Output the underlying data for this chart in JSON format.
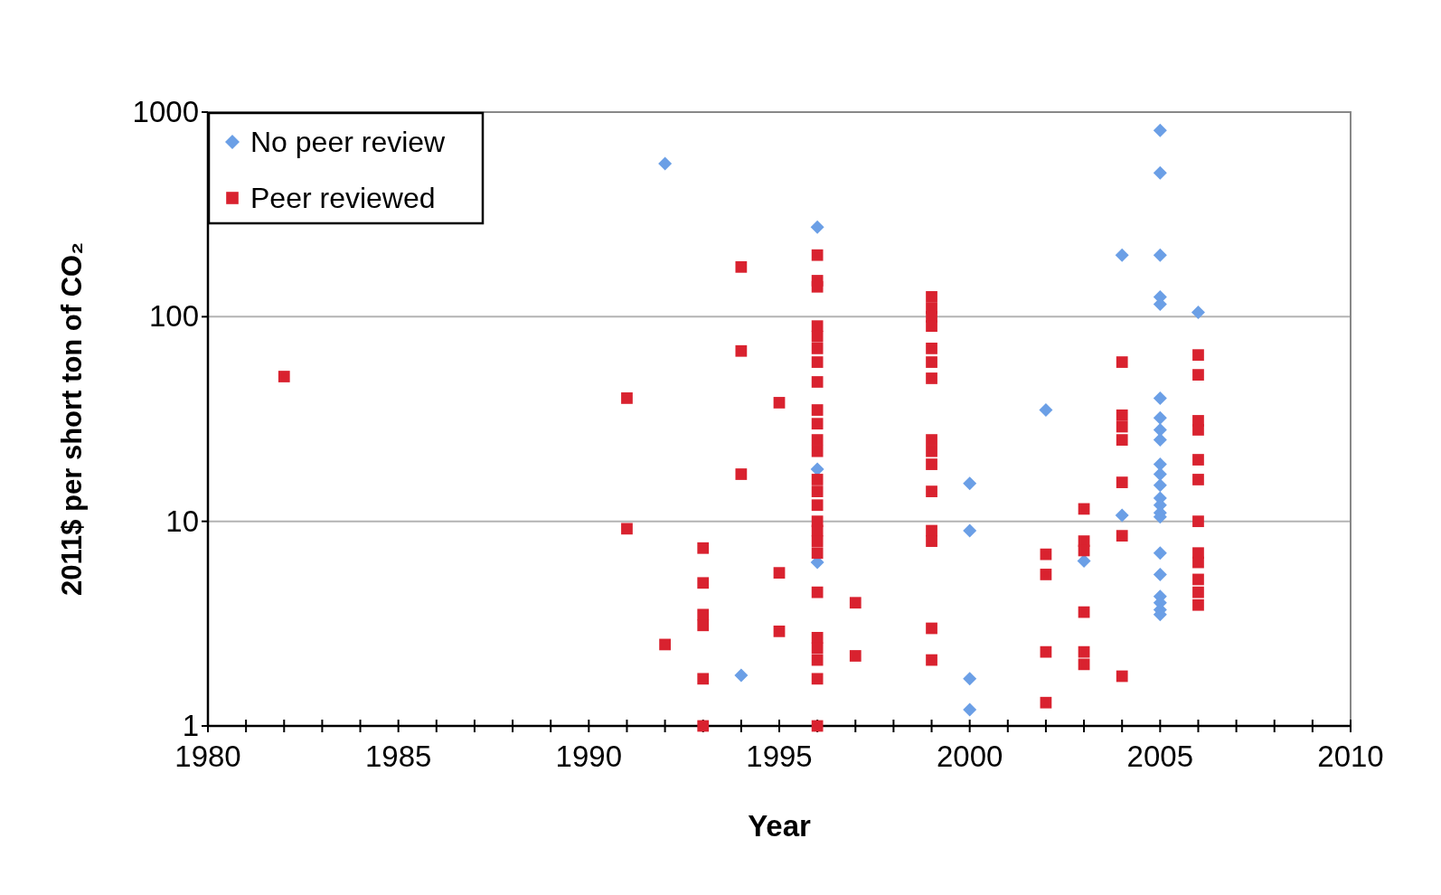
{
  "chart_data": {
    "type": "scatter",
    "xlabel": "Year",
    "ylabel": "2011$ per short ton of CO₂",
    "log": "y",
    "grid": "y",
    "legend": "top left",
    "xlim": [
      1980,
      2010
    ],
    "xticks": [
      1980,
      {
        "value": 1981,
        "label": null
      },
      {
        "value": 1982,
        "label": null
      },
      {
        "value": 1983,
        "label": null
      },
      {
        "value": 1984,
        "label": null
      },
      1985,
      {
        "value": 1986,
        "label": null
      },
      {
        "value": 1987,
        "label": null
      },
      {
        "value": 1988,
        "label": null
      },
      {
        "value": 1989,
        "label": null
      },
      1990,
      {
        "value": 1991,
        "label": null
      },
      {
        "value": 1992,
        "label": null
      },
      {
        "value": 1993,
        "label": null
      },
      {
        "value": 1994,
        "label": null
      },
      1995,
      {
        "value": 1996,
        "label": null
      },
      {
        "value": 1997,
        "label": null
      },
      {
        "value": 1998,
        "label": null
      },
      {
        "value": 1999,
        "label": null
      },
      2000,
      {
        "value": 2001,
        "label": null
      },
      {
        "value": 2002,
        "label": null
      },
      {
        "value": 2003,
        "label": null
      },
      {
        "value": 2004,
        "label": null
      },
      2005,
      {
        "value": 2006,
        "label": null
      },
      {
        "value": 2007,
        "label": null
      },
      {
        "value": 2008,
        "label": null
      },
      {
        "value": 2009,
        "label": null
      },
      2010
    ],
    "ylim": [
      1,
      1000
    ],
    "yticks": [
      1,
      10,
      100,
      1000
    ],
    "series": [
      {
        "name": "No peer review",
        "color": "#6b9fe6",
        "marker": "diamond",
        "x": [
          1992,
          1994,
          1996,
          1996,
          1996,
          2000,
          2000,
          2000,
          2000,
          2002,
          2003,
          2004,
          2004,
          2005,
          2005,
          2005,
          2005,
          2005,
          2005,
          2005,
          2005,
          2005,
          2005,
          2005,
          2005,
          2005,
          2005,
          2005,
          2005,
          2005,
          2005,
          2005,
          2005,
          2005,
          2005,
          2006
        ],
        "values": [
          560,
          1.77,
          274,
          18,
          6.3,
          15.3,
          9,
          1.7,
          1.2,
          35,
          6.4,
          200,
          10.7,
          814,
          505,
          200,
          125,
          115,
          40,
          32,
          28,
          25,
          19,
          17,
          15,
          13,
          12,
          11,
          10.5,
          7,
          5.5,
          4.3,
          4,
          3.7,
          3.5,
          105
        ]
      },
      {
        "name": "Peer reviewed",
        "color": "#d9222f",
        "marker": "square",
        "x": [
          1982,
          1991,
          1991,
          1992,
          1993,
          1993,
          1993,
          1993,
          1993,
          1993,
          1994,
          1994,
          1994,
          1995,
          1995,
          1995,
          1996,
          1996,
          1996,
          1996,
          1996,
          1996,
          1996,
          1996,
          1996,
          1996,
          1996,
          1996,
          1996,
          1996,
          1996,
          1996,
          1996,
          1996,
          1996,
          1996,
          1996,
          1996,
          1996,
          1996,
          1996,
          1997,
          1997,
          1999,
          1999,
          1999,
          1999,
          1999,
          1999,
          1999,
          1999,
          1999,
          1999,
          1999,
          1999,
          1999,
          1999,
          1999,
          2002,
          2002,
          2002,
          2002,
          2003,
          2003,
          2003,
          2003,
          2003,
          2003,
          2004,
          2004,
          2004,
          2004,
          2004,
          2004,
          2004,
          2006,
          2006,
          2006,
          2006,
          2006,
          2006,
          2006,
          2006,
          2006,
          2006,
          2006,
          2006
        ],
        "values": [
          51,
          40,
          9.2,
          2.5,
          7.4,
          5,
          3.5,
          3.1,
          1.7,
          1,
          175,
          68,
          17,
          38,
          5.6,
          2.9,
          200,
          150,
          140,
          90,
          80,
          70,
          60,
          48,
          35,
          30,
          25,
          22,
          16,
          14,
          12,
          10,
          9,
          8,
          7,
          4.5,
          2.7,
          2.4,
          2.1,
          1.7,
          1,
          4,
          2.2,
          125,
          110,
          100,
          90,
          70,
          60,
          50,
          25,
          22,
          19,
          14,
          9,
          8,
          3,
          2.1,
          6.9,
          5.5,
          2.3,
          1.3,
          11.5,
          8,
          7.2,
          3.6,
          2.3,
          2,
          60,
          33,
          29,
          25,
          15.5,
          8.5,
          1.75,
          65,
          52,
          31,
          28,
          20,
          16,
          10,
          7,
          6.3,
          5.2,
          4.5,
          3.9
        ]
      }
    ]
  }
}
